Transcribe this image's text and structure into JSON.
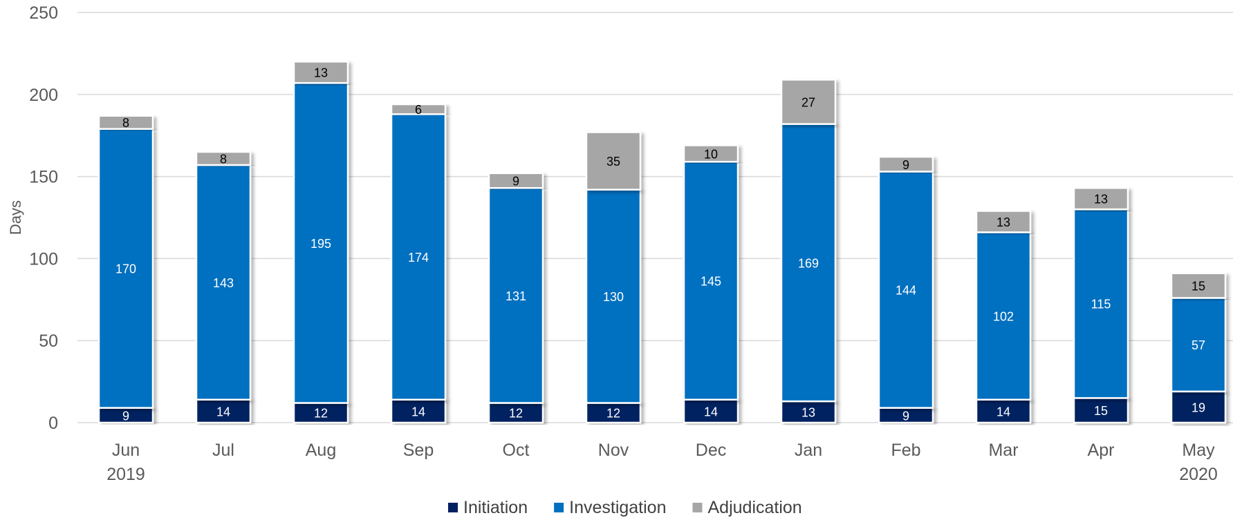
{
  "chart_data": {
    "type": "bar",
    "stacked": true,
    "ylabel": "Days",
    "ylim": [
      0,
      250
    ],
    "yticks": [
      0,
      50,
      100,
      150,
      200,
      250
    ],
    "grid": true,
    "legend_position": "bottom",
    "categories": [
      "Jun 2019",
      "Jul",
      "Aug",
      "Sep",
      "Oct",
      "Nov",
      "Dec",
      "Jan",
      "Feb",
      "Mar",
      "Apr",
      "May 2020"
    ],
    "category_labels": [
      [
        "Jun",
        "2019"
      ],
      [
        "Jul"
      ],
      [
        "Aug"
      ],
      [
        "Sep"
      ],
      [
        "Oct"
      ],
      [
        "Nov"
      ],
      [
        "Dec"
      ],
      [
        "Jan"
      ],
      [
        "Feb"
      ],
      [
        "Mar"
      ],
      [
        "Apr"
      ],
      [
        "May",
        "2020"
      ]
    ],
    "series": [
      {
        "name": "Initiation",
        "color": "#002060",
        "label_color": "#ffffff",
        "values": [
          9,
          14,
          12,
          14,
          12,
          12,
          14,
          13,
          9,
          14,
          15,
          19
        ]
      },
      {
        "name": "Investigation",
        "color": "#0070C0",
        "label_color": "#ffffff",
        "values": [
          170,
          143,
          195,
          174,
          131,
          130,
          145,
          169,
          144,
          102,
          115,
          57
        ]
      },
      {
        "name": "Adjudication",
        "color": "#A6A6A6",
        "label_color": "#000000",
        "values": [
          8,
          8,
          13,
          6,
          9,
          35,
          10,
          27,
          9,
          13,
          13,
          15
        ]
      }
    ]
  }
}
